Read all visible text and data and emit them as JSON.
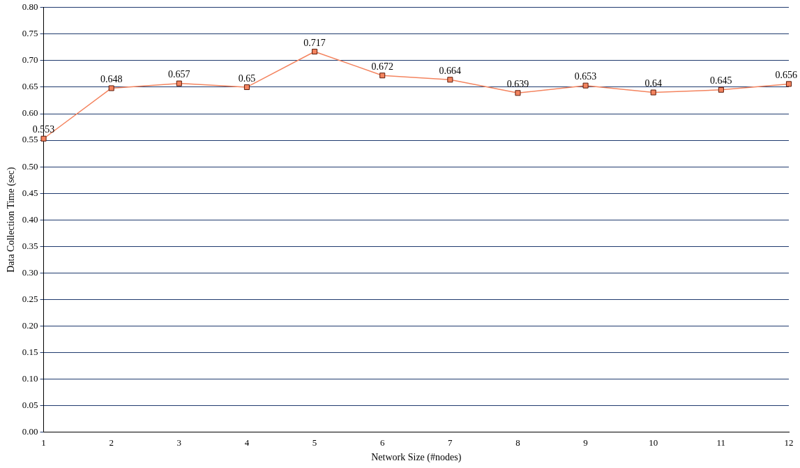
{
  "chart_data": {
    "type": "line",
    "xlabel": "Network Size (#nodes)",
    "ylabel": "Data Collection Time (sec)",
    "categories": [
      "1",
      "2",
      "3",
      "4",
      "5",
      "6",
      "7",
      "8",
      "9",
      "10",
      "11",
      "12"
    ],
    "series": [
      {
        "color": "#f4845f",
        "values": [
          0.553,
          0.648,
          0.657,
          0.65,
          0.717,
          0.672,
          0.664,
          0.639,
          0.653,
          0.64,
          0.645,
          0.656
        ]
      }
    ],
    "ylim": [
      0,
      0.8
    ],
    "yticks": [
      {
        "value": 0,
        "label": "0.00"
      },
      {
        "value": 0.05,
        "label": "0.05"
      },
      {
        "value": 0.1,
        "label": "0.10"
      },
      {
        "value": 0.15,
        "label": "0.15"
      },
      {
        "value": 0.2,
        "label": "0.20"
      },
      {
        "value": 0.25,
        "label": "0.25"
      },
      {
        "value": 0.3,
        "label": "0.30"
      },
      {
        "value": 0.35,
        "label": "0.35"
      },
      {
        "value": 0.4,
        "label": "0.40"
      },
      {
        "value": 0.45,
        "label": "0.45"
      },
      {
        "value": 0.5,
        "label": "0.50"
      },
      {
        "value": 0.55,
        "label": "0.55"
      },
      {
        "value": 0.6,
        "label": "0.60"
      },
      {
        "value": 0.65,
        "label": "0.65"
      },
      {
        "value": 0.7,
        "label": "0.70"
      },
      {
        "value": 0.75,
        "label": "0.75"
      },
      {
        "value": 0.8,
        "label": "0.80"
      }
    ],
    "grid": "y",
    "legend": false,
    "marker": "square",
    "line_style": "solid",
    "data_labels": true
  }
}
